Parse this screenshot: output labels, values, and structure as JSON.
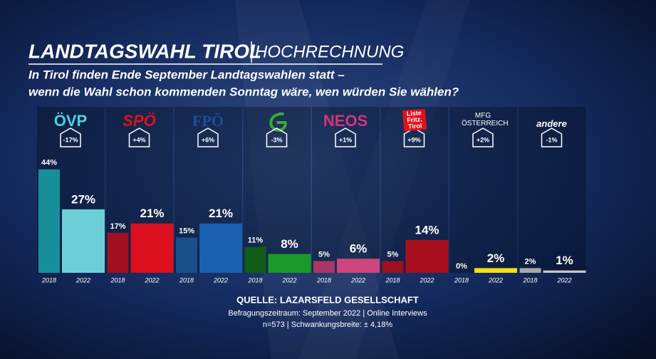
{
  "chart_data": {
    "type": "bar",
    "title": "LANDTAGSWAHL TIROL",
    "subtitle": "HOCHRECHNUNG",
    "question": [
      "In Tirol finden Ende September Landtagswahlen statt –",
      "wenn die Wahl schon kommenden Sonntag wäre, wen würden Sie wählen?"
    ],
    "categories": [
      "ÖVP",
      "SPÖ",
      "FPÖ",
      null,
      "NEOS",
      "Liste Fritz. Tirol",
      "MFG ÖSTERREICH",
      "andere"
    ],
    "label_colors": [
      "#4fd0e0",
      "#e0101e",
      "#1d4f9c",
      "#3aaa35",
      "#d4357a",
      "#e0101e",
      "#ffffff",
      "#ffffff"
    ],
    "changes": [
      -17,
      4,
      6,
      -3,
      1,
      9,
      2,
      -1
    ],
    "change_labels": [
      "-17%",
      "+4%",
      "+6%",
      "-3%",
      "+1%",
      "+9%",
      "+2%",
      "-1%"
    ],
    "series": [
      {
        "name": "2018",
        "values": [
          44,
          17,
          15,
          11,
          5,
          5,
          0,
          2
        ],
        "value_labels": [
          "44%",
          "17%",
          "15%",
          "11%",
          "5%",
          "5%",
          "0%",
          "2%"
        ],
        "colors": [
          "#168f9a",
          "#a01020",
          "#1a4f8a",
          "#0e5e1a",
          "#a8386a",
          "#9c1020",
          "#888888",
          "#a8a8a8"
        ]
      },
      {
        "name": "2022",
        "values": [
          27,
          21,
          21,
          8,
          6,
          14,
          2,
          1
        ],
        "value_labels": [
          "27%",
          "21%",
          "21%",
          "8%",
          "6%",
          "14%",
          "2%",
          "1%"
        ],
        "colors": [
          "#6ccfd8",
          "#dd1020",
          "#1b5fb0",
          "#1a9a2a",
          "#cf457f",
          "#a81020",
          "#f2e01a",
          "#c8c8c8"
        ]
      }
    ],
    "source": "QUELLE:  LAZARSFELD GESELLSCHAFT",
    "notes": [
      "Befragungszeitraum: September 2022 | Online Interviews",
      "n=573 |  Schwankungsbreite: ± 4,18%"
    ]
  }
}
